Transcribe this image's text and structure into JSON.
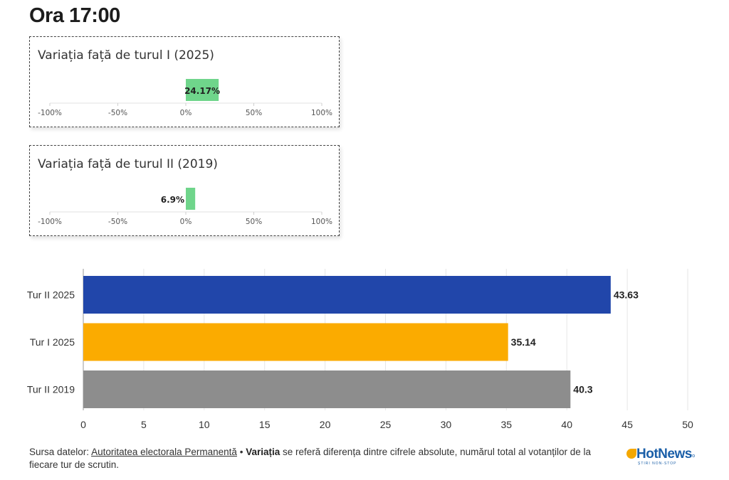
{
  "page": {
    "title": "Ora 17:00"
  },
  "chart_data": [
    {
      "type": "bar",
      "title": "Variația față de turul I (2025)",
      "orientation": "horizontal",
      "values": [
        24.17
      ],
      "value_label": "24.17%",
      "xlim": [
        -100,
        100
      ],
      "ticks": [
        "-100%",
        "-50%",
        "0%",
        "50%",
        "100%"
      ],
      "tick_values": [
        -100,
        -50,
        0,
        50,
        100
      ],
      "bar_color": "#6fd58b"
    },
    {
      "type": "bar",
      "title": "Variația față de turul II (2019)",
      "orientation": "horizontal",
      "values": [
        6.9
      ],
      "value_label": "6.9%",
      "xlim": [
        -100,
        100
      ],
      "ticks": [
        "-100%",
        "-50%",
        "0%",
        "50%",
        "100%"
      ],
      "tick_values": [
        -100,
        -50,
        0,
        50,
        100
      ],
      "bar_color": "#6fd58b"
    },
    {
      "type": "bar",
      "orientation": "horizontal",
      "categories": [
        "Tur II 2025",
        "Tur I 2025",
        "Tur II 2019"
      ],
      "values": [
        43.63,
        35.14,
        40.3
      ],
      "value_labels": [
        "43.63",
        "35.14",
        "40.3"
      ],
      "colors": [
        "#2146aa",
        "#fbab00",
        "#8d8d8d"
      ],
      "xlim": [
        0,
        50
      ],
      "xticks": [
        0,
        5,
        10,
        15,
        20,
        25,
        30,
        35,
        40,
        45,
        50
      ],
      "grid": true
    }
  ],
  "footer": {
    "source_prefix": "Sursa datelor:",
    "source_link": "Autoritatea electorala Permanentă",
    "separator": "•",
    "variation_term": "Variația",
    "note": "se referă diferența dintre cifrele absolute, numărul total al votanților de la fiecare tur de scrutin."
  },
  "logo": {
    "name": "HotNews",
    "suffix": ".ro",
    "tagline": "ȘTIRI NON-STOP",
    "color": "#1b5fa8",
    "mark_color": "#f5a800"
  }
}
